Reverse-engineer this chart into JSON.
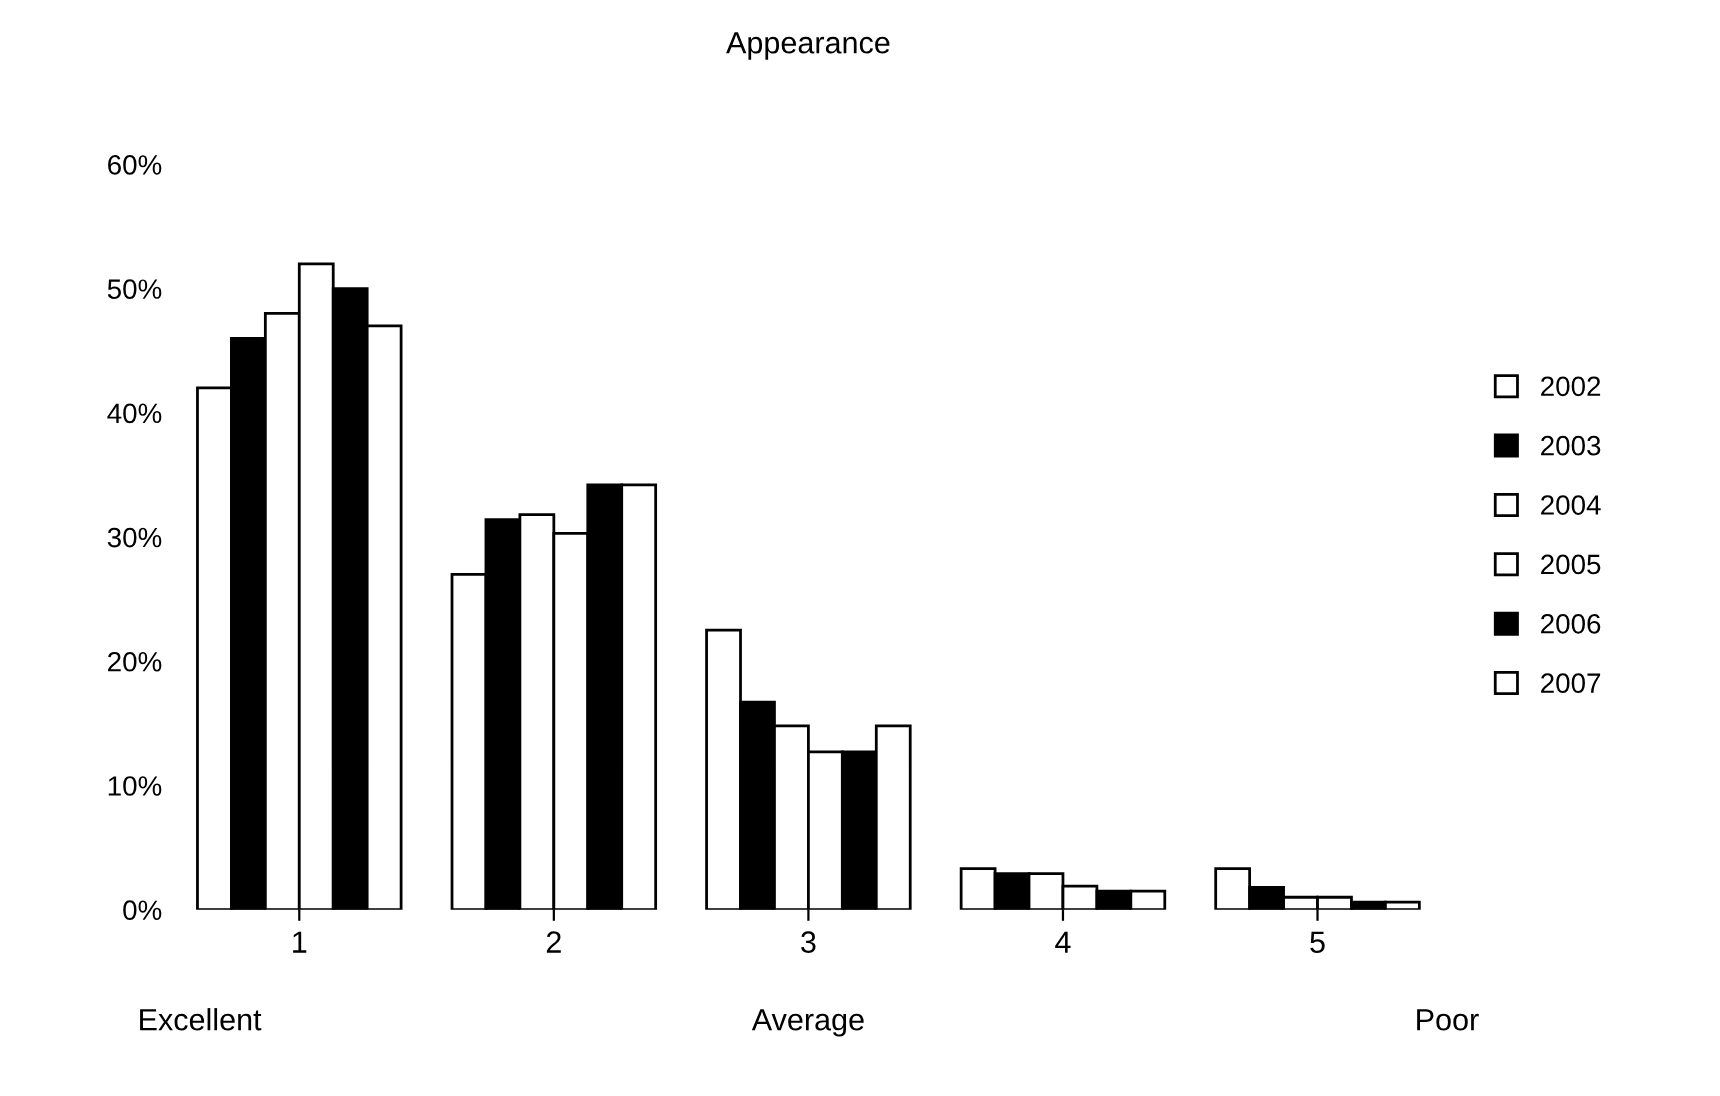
{
  "chart_data": {
    "type": "bar",
    "title": "Appearance",
    "categories": [
      "1",
      "2",
      "3",
      "4",
      "5"
    ],
    "series": [
      {
        "name": "2002",
        "color": "#ffffff",
        "values": [
          42,
          27,
          22.5,
          3.3,
          3.3
        ]
      },
      {
        "name": "2003",
        "color": "#000000",
        "values": [
          46,
          31.4,
          16.7,
          2.9,
          1.8
        ]
      },
      {
        "name": "2004",
        "color": "#ffffff",
        "values": [
          48,
          31.8,
          14.8,
          2.9,
          1.0
        ]
      },
      {
        "name": "2005",
        "color": "#ffffff",
        "values": [
          52,
          30.3,
          12.7,
          1.9,
          1.0
        ]
      },
      {
        "name": "2006",
        "color": "#000000",
        "values": [
          50,
          34.2,
          12.7,
          1.5,
          0.6
        ]
      },
      {
        "name": "2007",
        "color": "#ffffff",
        "values": [
          47,
          34.2,
          14.8,
          1.5,
          0.6
        ]
      }
    ],
    "ylim": [
      0,
      60
    ],
    "yticks": [
      {
        "value": 0,
        "label": "0%"
      },
      {
        "value": 10,
        "label": "10%"
      },
      {
        "value": 20,
        "label": "20%"
      },
      {
        "value": 30,
        "label": "30%"
      },
      {
        "value": 40,
        "label": "40%"
      },
      {
        "value": 50,
        "label": "50%"
      },
      {
        "value": 60,
        "label": "60%"
      }
    ],
    "annotations": [
      "Excellent",
      "Average",
      "Poor"
    ],
    "legend": "right",
    "grid": false
  }
}
